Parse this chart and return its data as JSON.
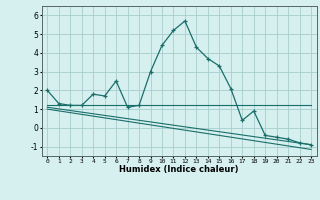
{
  "title": "",
  "xlabel": "Humidex (Indice chaleur)",
  "bg_color": "#d6f0f0",
  "grid_color": "#a8cece",
  "line_color": "#1a6e6a",
  "xlim": [
    -0.5,
    23.5
  ],
  "ylim": [
    -1.5,
    6.5
  ],
  "xticks": [
    0,
    1,
    2,
    3,
    4,
    5,
    6,
    7,
    8,
    9,
    10,
    11,
    12,
    13,
    14,
    15,
    16,
    17,
    18,
    19,
    20,
    21,
    22,
    23
  ],
  "yticks": [
    -1,
    0,
    1,
    2,
    3,
    4,
    5,
    6
  ],
  "curve1_x": [
    0,
    1,
    2,
    3,
    4,
    5,
    6,
    7,
    8,
    9,
    10,
    11,
    12,
    13,
    14,
    15,
    16,
    17,
    18,
    19,
    20,
    21,
    22,
    23
  ],
  "curve1_y": [
    2.0,
    1.3,
    1.2,
    1.2,
    1.8,
    1.7,
    2.5,
    1.1,
    1.2,
    3.0,
    4.4,
    5.2,
    5.7,
    4.3,
    3.7,
    3.3,
    2.1,
    0.4,
    0.9,
    -0.4,
    -0.5,
    -0.6,
    -0.8,
    -0.9
  ],
  "curve2_x": [
    0,
    23
  ],
  "curve2_y": [
    1.2,
    1.2
  ],
  "curve3_x": [
    0,
    23
  ],
  "curve3_y": [
    1.1,
    -0.9
  ],
  "curve4_x": [
    0,
    23
  ],
  "curve4_y": [
    1.0,
    -1.15
  ]
}
